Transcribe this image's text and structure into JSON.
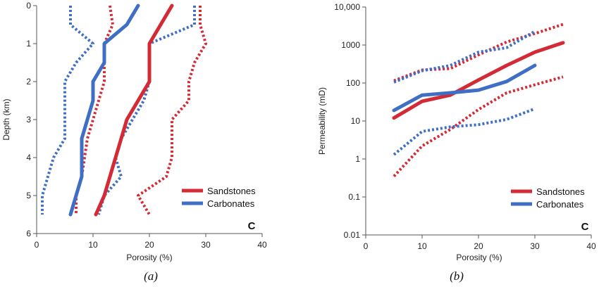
{
  "colors": {
    "sandstones": "#d42a35",
    "carbonates": "#3f6fc4",
    "axis": "#555555"
  },
  "chart_data": [
    {
      "type": "line",
      "caption": "(a)",
      "panel_letter": "C",
      "xlabel": "Porosity (%)",
      "ylabel": "Depth (km)",
      "xlim": [
        0,
        40
      ],
      "ylim": [
        0,
        6
      ],
      "y_inverted": true,
      "x_ticks": [
        "0",
        "10",
        "20",
        "30",
        "40"
      ],
      "y_ticks": [
        "0",
        "1",
        "2",
        "3",
        "4",
        "5",
        "6"
      ],
      "legend": {
        "position": "bottom-right",
        "entries": [
          "Sandstones",
          "Carbonates"
        ]
      },
      "series": [
        {
          "name": "Sandstones",
          "style": "solid",
          "color_key": "sandstones",
          "points": [
            [
              24,
              0
            ],
            [
              22,
              0.5
            ],
            [
              20,
              1
            ],
            [
              20,
              2
            ],
            [
              18,
              2.5
            ],
            [
              16,
              3
            ],
            [
              15,
              3.5
            ],
            [
              14,
              4
            ],
            [
              13,
              4.5
            ],
            [
              12,
              5
            ],
            [
              10.5,
              5.5
            ]
          ]
        },
        {
          "name": "Sandstones range low",
          "style": "dotted",
          "color_key": "sandstones",
          "points": [
            [
              13,
              0
            ],
            [
              13.5,
              0.5
            ],
            [
              12,
              1
            ],
            [
              12,
              2
            ],
            [
              11,
              2.5
            ],
            [
              10,
              3
            ],
            [
              9,
              3.5
            ],
            [
              8.5,
              4
            ],
            [
              8,
              4.5
            ],
            [
              7,
              5
            ],
            [
              7,
              5.5
            ]
          ]
        },
        {
          "name": "Sandstones range high",
          "style": "dotted",
          "color_key": "sandstones",
          "points": [
            [
              29,
              0
            ],
            [
              29,
              0.5
            ],
            [
              30,
              1
            ],
            [
              28,
              1.5
            ],
            [
              27,
              2
            ],
            [
              27,
              2.5
            ],
            [
              24,
              3
            ],
            [
              24,
              4
            ],
            [
              23,
              4.5
            ],
            [
              18,
              5
            ],
            [
              20,
              5.5
            ]
          ]
        },
        {
          "name": "Carbonates",
          "style": "solid",
          "color_key": "carbonates",
          "points": [
            [
              18,
              0
            ],
            [
              16,
              0.5
            ],
            [
              12,
              1
            ],
            [
              12,
              1.5
            ],
            [
              10,
              2
            ],
            [
              10,
              2.5
            ],
            [
              9,
              3
            ],
            [
              8,
              3.5
            ],
            [
              8,
              4
            ],
            [
              8,
              4.5
            ],
            [
              7,
              5
            ],
            [
              6,
              5.5
            ]
          ]
        },
        {
          "name": "Carbonates range low",
          "style": "dotted",
          "color_key": "carbonates",
          "points": [
            [
              6,
              0
            ],
            [
              6,
              0.5
            ],
            [
              10,
              1
            ],
            [
              7,
              1.5
            ],
            [
              5,
              2
            ],
            [
              5,
              3
            ],
            [
              5,
              3.5
            ],
            [
              3,
              4
            ],
            [
              2,
              4.5
            ],
            [
              1,
              5
            ],
            [
              1,
              5.5
            ]
          ]
        },
        {
          "name": "Carbonates range high",
          "style": "dotted",
          "color_key": "carbonates",
          "points": [
            [
              28,
              0
            ],
            [
              28,
              0.5
            ],
            [
              20,
              1
            ],
            [
              20,
              2
            ],
            [
              19,
              2.5
            ],
            [
              17,
              3
            ],
            [
              15,
              3.5
            ],
            [
              14,
              4
            ],
            [
              15,
              4.5
            ],
            [
              12,
              5
            ],
            [
              11,
              5.5
            ]
          ]
        }
      ]
    },
    {
      "type": "line",
      "caption": "(b)",
      "panel_letter": "C",
      "xlabel": "Porosity (%)",
      "ylabel": "Permeability (mD)",
      "xlim": [
        0,
        40
      ],
      "ylim": [
        0.01,
        10000
      ],
      "y_scale": "log",
      "x_ticks": [
        "0",
        "10",
        "20",
        "30",
        "40"
      ],
      "y_ticks": [
        "0.01",
        "0.1",
        "1",
        "10",
        "100",
        "1000",
        "10,000"
      ],
      "legend": {
        "position": "bottom-right",
        "entries": [
          "Sandstones",
          "Carbonates"
        ]
      },
      "series": [
        {
          "name": "Sandstones",
          "style": "solid",
          "color_key": "sandstones",
          "points": [
            [
              5,
              12
            ],
            [
              10,
              33
            ],
            [
              15,
              48
            ],
            [
              20,
              120
            ],
            [
              25,
              290
            ],
            [
              30,
              650
            ],
            [
              35,
              1150
            ]
          ]
        },
        {
          "name": "Sandstones range low",
          "style": "dotted",
          "color_key": "sandstones",
          "points": [
            [
              5,
              0.35
            ],
            [
              10,
              2.2
            ],
            [
              15,
              6
            ],
            [
              20,
              20
            ],
            [
              25,
              55
            ],
            [
              30,
              90
            ],
            [
              35,
              145
            ]
          ]
        },
        {
          "name": "Sandstones range high",
          "style": "dotted",
          "color_key": "sandstones",
          "points": [
            [
              5,
              115
            ],
            [
              10,
              220
            ],
            [
              15,
              240
            ],
            [
              20,
              550
            ],
            [
              25,
              1200
            ],
            [
              30,
              2000
            ],
            [
              35,
              3500
            ]
          ]
        },
        {
          "name": "Carbonates",
          "style": "solid",
          "color_key": "carbonates",
          "points": [
            [
              5,
              19
            ],
            [
              10,
              48
            ],
            [
              15,
              55
            ],
            [
              20,
              65
            ],
            [
              25,
              110
            ],
            [
              30,
              290
            ]
          ]
        },
        {
          "name": "Carbonates range low",
          "style": "dotted",
          "color_key": "carbonates",
          "points": [
            [
              5,
              1.3
            ],
            [
              10,
              5.3
            ],
            [
              15,
              7
            ],
            [
              20,
              8
            ],
            [
              25,
              11
            ],
            [
              30,
              21
            ]
          ]
        },
        {
          "name": "Carbonates range high",
          "style": "dotted",
          "color_key": "carbonates",
          "points": [
            [
              5,
              105
            ],
            [
              10,
              210
            ],
            [
              15,
              290
            ],
            [
              20,
              650
            ],
            [
              25,
              850
            ],
            [
              30,
              2300
            ]
          ]
        }
      ]
    }
  ]
}
